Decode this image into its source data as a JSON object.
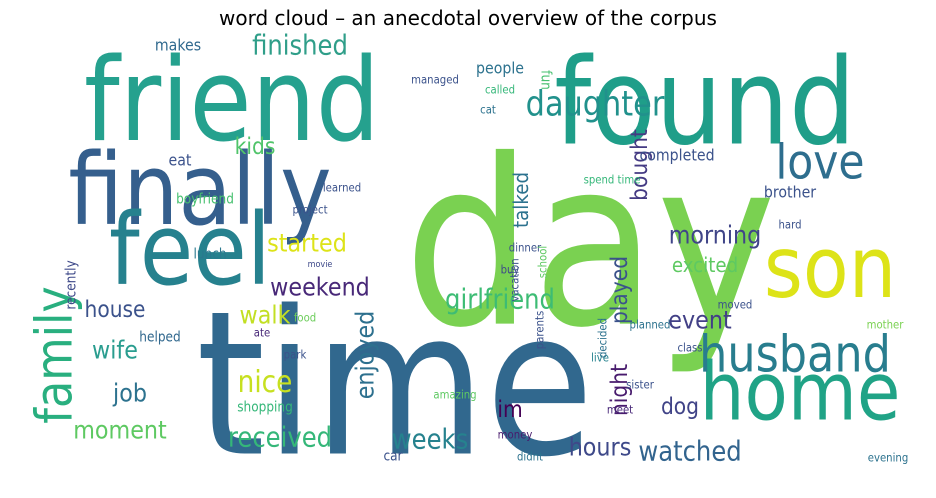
{
  "chart_data": {
    "type": "wordcloud",
    "title": "word cloud – an anecdotal overview of the corpus",
    "words": [
      {
        "text": "day",
        "weight": 100,
        "color": "#7ad151"
      },
      {
        "text": "time",
        "weight": 87,
        "color": "#31688e"
      },
      {
        "text": "friend",
        "weight": 50,
        "color": "#25a18e"
      },
      {
        "text": "found",
        "weight": 52,
        "color": "#1f9e89"
      },
      {
        "text": "finally",
        "weight": 43,
        "color": "#355f8d"
      },
      {
        "text": "feel",
        "weight": 43,
        "color": "#26818e"
      },
      {
        "text": "son",
        "weight": 37,
        "color": "#dde318"
      },
      {
        "text": "home",
        "weight": 35,
        "color": "#20a386"
      },
      {
        "text": "husband",
        "weight": 22,
        "color": "#287d8e"
      },
      {
        "text": "family",
        "weight": 22,
        "color": "#29af7f"
      },
      {
        "text": "love",
        "weight": 21,
        "color": "#2e6e8e"
      },
      {
        "text": "daughter",
        "weight": 15,
        "color": "#21918c"
      },
      {
        "text": "finished",
        "weight": 12,
        "color": "#2f9e89"
      },
      {
        "text": "kids",
        "weight": 10,
        "color": "#50c46a"
      },
      {
        "text": "started",
        "weight": 11,
        "color": "#dde318"
      },
      {
        "text": "weekend",
        "weight": 11,
        "color": "#482878"
      },
      {
        "text": "walk",
        "weight": 11,
        "color": "#c2df23"
      },
      {
        "text": "girlfriend",
        "weight": 12,
        "color": "#3dbc74"
      },
      {
        "text": "house",
        "weight": 10,
        "color": "#3b528b"
      },
      {
        "text": "wife",
        "weight": 11,
        "color": "#2a9d8f"
      },
      {
        "text": "nice",
        "weight": 13,
        "color": "#c7e020"
      },
      {
        "text": "job",
        "weight": 11,
        "color": "#2c728e"
      },
      {
        "text": "moment",
        "weight": 11,
        "color": "#5ec962"
      },
      {
        "text": "received",
        "weight": 12,
        "color": "#35b779"
      },
      {
        "text": "weeks",
        "weight": 12,
        "color": "#26828e"
      },
      {
        "text": "hours",
        "weight": 11,
        "color": "#3e4989"
      },
      {
        "text": "watched",
        "weight": 12,
        "color": "#32648e"
      },
      {
        "text": "dog",
        "weight": 10,
        "color": "#404387"
      },
      {
        "text": "event",
        "weight": 11,
        "color": "#424086"
      },
      {
        "text": "morning",
        "weight": 11,
        "color": "#404588"
      },
      {
        "text": "excited",
        "weight": 9,
        "color": "#5ec962"
      },
      {
        "text": "bought",
        "weight": 10,
        "color": "#443a83"
      },
      {
        "text": "talked",
        "weight": 9,
        "color": "#2c728e"
      },
      {
        "text": "enjoyed",
        "weight": 11,
        "color": "#2d708e"
      },
      {
        "text": "played",
        "weight": 10,
        "color": "#3b528b"
      },
      {
        "text": "night",
        "weight": 10,
        "color": "#481b6d"
      },
      {
        "text": "im",
        "weight": 10,
        "color": "#440154"
      },
      {
        "text": "brother",
        "weight": 7,
        "color": "#3b528b"
      },
      {
        "text": "people",
        "weight": 7,
        "color": "#2c728e"
      },
      {
        "text": "called",
        "weight": 5,
        "color": "#35b779"
      },
      {
        "text": "cat",
        "weight": 5,
        "color": "#2c728e"
      },
      {
        "text": "fun",
        "weight": 6,
        "color": "#46c06f"
      },
      {
        "text": "makes",
        "weight": 7,
        "color": "#30698e"
      },
      {
        "text": "eat",
        "weight": 7,
        "color": "#3b528b"
      },
      {
        "text": "boyfriend",
        "weight": 6,
        "color": "#46c06f"
      },
      {
        "text": "lunch",
        "weight": 6,
        "color": "#2a788e"
      },
      {
        "text": "completed",
        "weight": 7,
        "color": "#3b528b"
      },
      {
        "text": "recently",
        "weight": 6,
        "color": "#3e4989"
      },
      {
        "text": "helped",
        "weight": 6,
        "color": "#31688e"
      },
      {
        "text": "shopping",
        "weight": 6,
        "color": "#35b779"
      },
      {
        "text": "car",
        "weight": 6,
        "color": "#3b528b"
      },
      {
        "text": "amazing",
        "weight": 5,
        "color": "#5ec962"
      },
      {
        "text": "money",
        "weight": 5,
        "color": "#481b6d"
      },
      {
        "text": "didnt",
        "weight": 5,
        "color": "#2c728e"
      },
      {
        "text": "dinner",
        "weight": 5,
        "color": "#3b528b"
      },
      {
        "text": "buy",
        "weight": 5,
        "color": "#3e4989"
      },
      {
        "text": "planned",
        "weight": 5,
        "color": "#2c728e"
      },
      {
        "text": "sister",
        "weight": 5,
        "color": "#3b528b"
      },
      {
        "text": "meet",
        "weight": 5,
        "color": "#482878"
      },
      {
        "text": "live",
        "weight": 5,
        "color": "#26828e"
      },
      {
        "text": "class",
        "weight": 5,
        "color": "#3b528b"
      },
      {
        "text": "evening",
        "weight": 5,
        "color": "#2c728e"
      },
      {
        "text": "project",
        "weight": 5,
        "color": "#3b528b"
      },
      {
        "text": "movie",
        "weight": 4,
        "color": "#3e4989"
      },
      {
        "text": "food",
        "weight": 5,
        "color": "#6ccd5a"
      },
      {
        "text": "park",
        "weight": 5,
        "color": "#3b528b"
      },
      {
        "text": "ate",
        "weight": 5,
        "color": "#482878"
      },
      {
        "text": "managed",
        "weight": 5,
        "color": "#3b528b"
      },
      {
        "text": "learned",
        "weight": 5,
        "color": "#3b528b"
      },
      {
        "text": "spend time",
        "weight": 5,
        "color": "#35b779"
      },
      {
        "text": "decided",
        "weight": 5,
        "color": "#2c728e"
      },
      {
        "text": "parents",
        "weight": 5,
        "color": "#3b528b"
      },
      {
        "text": "vacation",
        "weight": 5,
        "color": "#3b528b"
      },
      {
        "text": "school",
        "weight": 5,
        "color": "#5ec962"
      },
      {
        "text": "moved",
        "weight": 5,
        "color": "#3b528b"
      },
      {
        "text": "mother",
        "weight": 5,
        "color": "#7ad151"
      },
      {
        "text": "hard",
        "weight": 5,
        "color": "#3b528b"
      }
    ]
  }
}
